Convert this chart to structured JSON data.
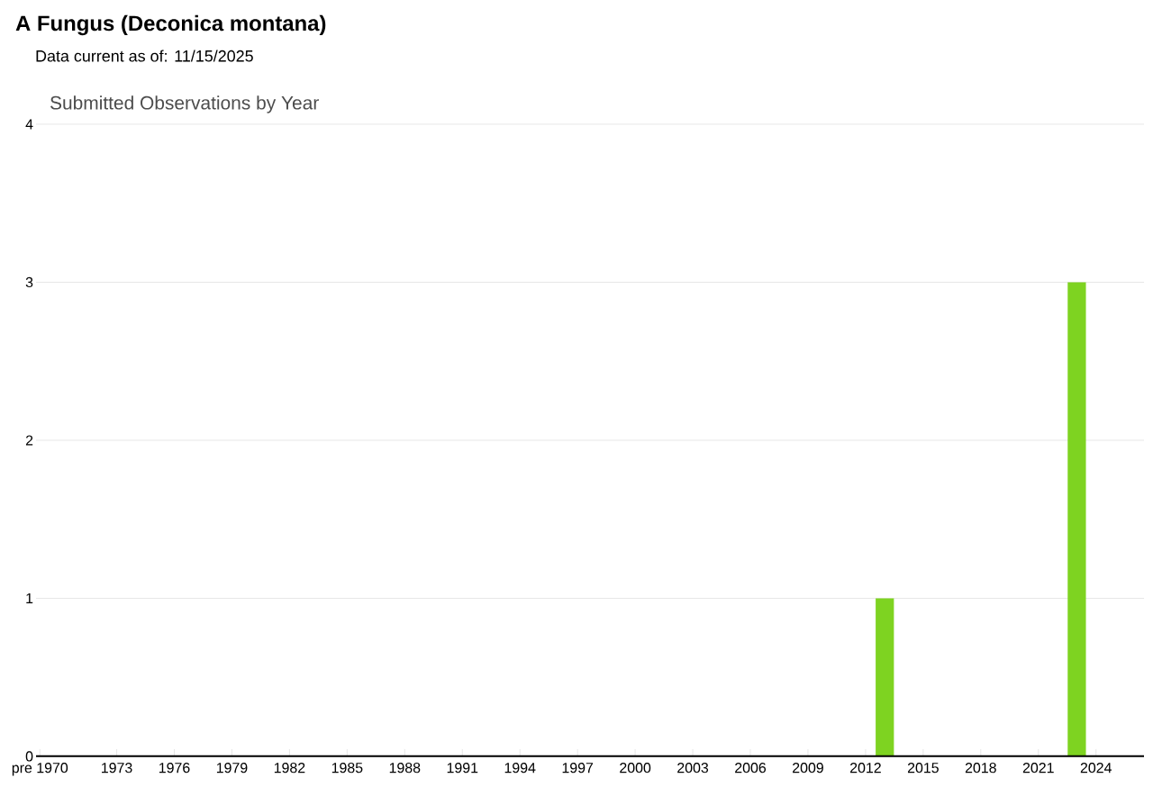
{
  "chart_data": {
    "type": "bar",
    "title": "A Fungus   (Deconica montana)",
    "subtitle": "Data current as of: 11/15/2025",
    "annotations": [
      "Submitted Observations by Year"
    ],
    "categories": [
      "pre 1970",
      null,
      null,
      null,
      "1973",
      null,
      null,
      "1976",
      null,
      null,
      "1979",
      null,
      null,
      "1982",
      null,
      null,
      "1985",
      null,
      null,
      "1988",
      null,
      null,
      "1991",
      null,
      null,
      "1994",
      null,
      null,
      "1997",
      null,
      null,
      "2000",
      null,
      null,
      "2003",
      null,
      null,
      "2006",
      null,
      null,
      "2009",
      null,
      null,
      "2012",
      null,
      null,
      "2015",
      null,
      null,
      "2018",
      null,
      null,
      "2021",
      null,
      null,
      "2024",
      null
    ],
    "values": [
      0,
      0,
      0,
      0,
      0,
      0,
      0,
      0,
      0,
      0,
      0,
      0,
      0,
      0,
      0,
      0,
      0,
      0,
      0,
      0,
      0,
      0,
      0,
      0,
      0,
      0,
      0,
      0,
      0,
      0,
      0,
      0,
      0,
      0,
      0,
      0,
      0,
      0,
      0,
      0,
      0,
      0,
      0,
      0,
      1,
      0,
      0,
      0,
      0,
      0,
      0,
      0,
      0,
      0,
      3,
      0,
      0
    ],
    "color": "#7ed321",
    "ylim": [
      0,
      4
    ],
    "yticks": [
      0,
      1,
      2,
      3,
      4
    ],
    "grid": "y"
  }
}
